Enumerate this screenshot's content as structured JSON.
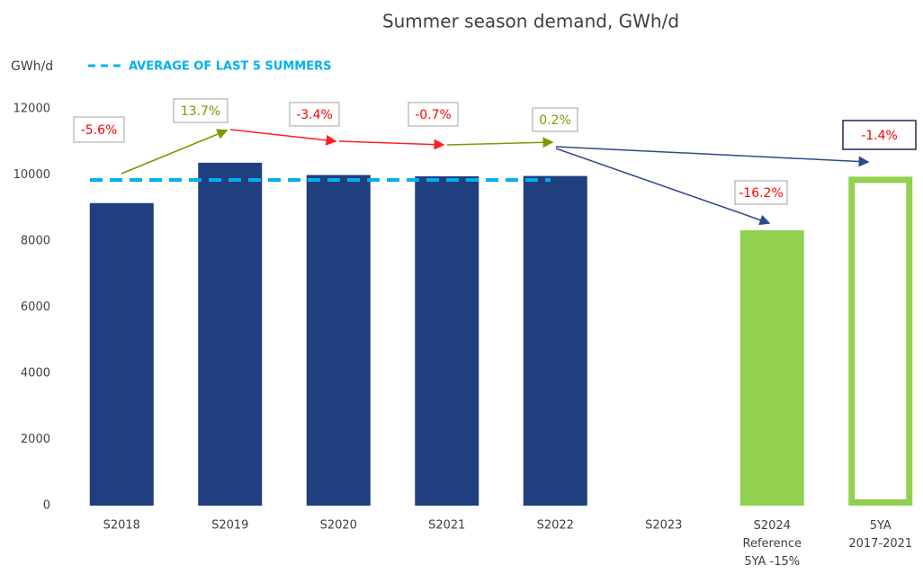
{
  "chart_data": {
    "type": "bar",
    "title": "Summer season demand, GWh/d",
    "y_label": "GWh/d",
    "categories": [
      "S2018",
      "S2019",
      "S2020",
      "S2021",
      "S2022",
      "S2023",
      "S2024\nReference\n5YA -15%",
      "5YA\n2017-2021"
    ],
    "values": [
      9150,
      10370,
      10000,
      9960,
      9970,
      null,
      8330,
      9950
    ],
    "colors": [
      "#203f7e",
      "#203f7e",
      "#203f7e",
      "#203f7e",
      "#203f7e",
      "#203f7e",
      "#92d050",
      "#92d050"
    ],
    "outline": [
      false,
      false,
      false,
      false,
      false,
      false,
      false,
      true
    ],
    "ylim": [
      0,
      12000
    ],
    "yticks": [
      0,
      2000,
      4000,
      6000,
      8000,
      10000,
      12000
    ],
    "grid": false,
    "average": {
      "name": "AVERAGE OF LAST 5 SUMMERS",
      "value": 9850,
      "color": "#00b0f0"
    },
    "annotations": [
      {
        "text": "-5.6%",
        "color": "#ff0000"
      },
      {
        "text": "13.7%",
        "color": "#7a9a01"
      },
      {
        "text": "-3.4%",
        "color": "#ff0000"
      },
      {
        "text": "-0.7%",
        "color": "#ff0000"
      },
      {
        "text": "0.2%",
        "color": "#7a9a01"
      },
      {
        "text": "-16.2%",
        "color": "#ff0000"
      },
      {
        "text": "-1.4%",
        "color": "#ff0000"
      }
    ]
  }
}
